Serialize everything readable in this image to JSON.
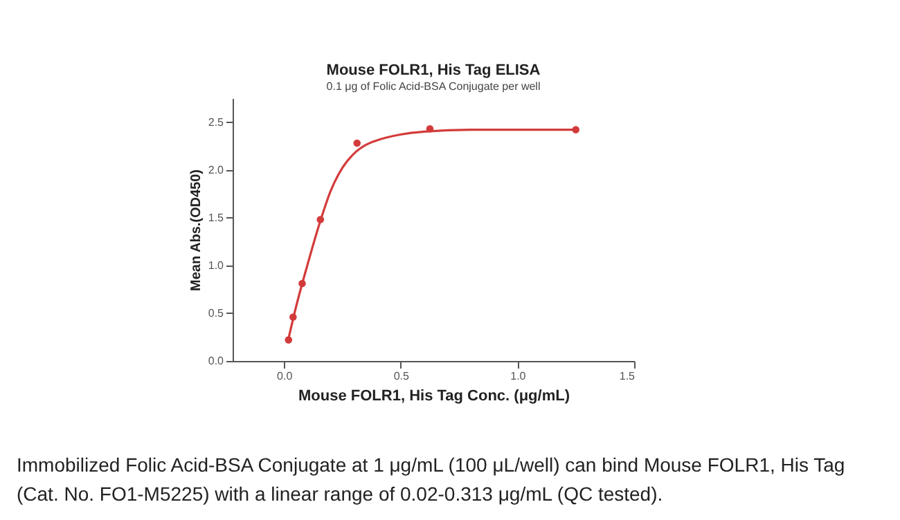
{
  "chart_data": {
    "type": "scatter",
    "title": "Mouse FOLR1, His Tag ELISA",
    "subtitle": "0.1 μg of Folic Acid-BSA Conjugate per well",
    "xlabel": "Mouse FOLR1, His Tag Conc. (μg/mL)",
    "ylabel": "Mean Abs.(OD450)",
    "xlim": [
      -0.22,
      1.5
    ],
    "xticks": [
      {
        "value": 0,
        "label": "0.0"
      },
      0.5,
      {
        "value": 1,
        "label": "1.0"
      },
      1.5
    ],
    "ylim": [
      0,
      2.75
    ],
    "yticks": [
      {
        "value": 0,
        "label": "0.0"
      },
      0.5,
      {
        "value": 1,
        "label": "1.0"
      },
      1.5,
      {
        "value": 2,
        "label": "2.0"
      },
      2.5
    ],
    "grid": false,
    "series": [
      {
        "color": "#d33b3b",
        "marker": "circle",
        "x": [
          0.0195,
          0.039,
          0.078,
          0.156,
          0.313,
          0.625,
          1.25
        ],
        "values": [
          0.22,
          0.46,
          0.81,
          1.48,
          2.28,
          2.43,
          2.42
        ]
      },
      {
        "type": "line",
        "color": "#d33b3b",
        "line_style": "solid",
        "x": [
          0.02,
          0.05,
          0.1,
          0.15,
          0.2,
          0.25,
          0.3,
          0.35,
          0.4,
          0.5,
          0.6,
          0.8,
          1.25
        ],
        "values": [
          0.24,
          0.55,
          1.0,
          1.42,
          1.78,
          2.02,
          2.17,
          2.26,
          2.31,
          2.37,
          2.4,
          2.42,
          2.42
        ]
      }
    ],
    "annotations": [
      "Immobilized Folic Acid-BSA Conjugate at 1 μg/mL (100 μL/well) can bind Mouse FOLR1, His Tag (Cat. No. FO1-M5225) with a linear range of 0.02-0.313 μg/mL (QC tested)."
    ]
  }
}
